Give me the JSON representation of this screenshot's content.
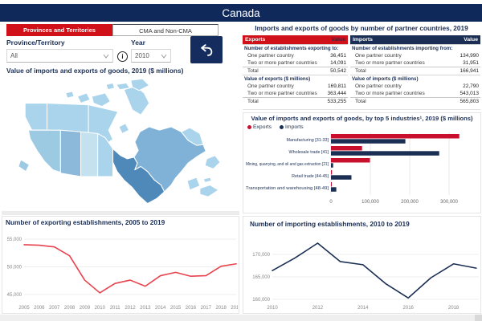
{
  "header": {
    "title": "Canada"
  },
  "tabs": {
    "provinces": "Provinces and Territories",
    "cma": "CMA and Non-CMA"
  },
  "filters": {
    "province_label": "Province/Territory",
    "province_value": "All",
    "year_label": "Year",
    "year_value": "2010"
  },
  "icons": {
    "info_glyph": "i"
  },
  "map": {
    "title": "Value of imports and exports of goods, 2019 ($ millions)",
    "region_colors": {
      "default": "#a9d4eb",
      "bc": "#9ccae3",
      "ab": "#8cb9d9",
      "sk": "#c4e1f0",
      "on": "#4e89ba",
      "qc": "#7fb2d6"
    }
  },
  "partner_tables": {
    "title": "Imports and exports of goods by number of partner countries, 2019",
    "exports": {
      "header": [
        "Exports",
        "Value"
      ],
      "header_bg": "#d01119",
      "value_header_color": "#1b2f55",
      "sections": [
        {
          "label": "Number of establishments exporting to:",
          "rows": [
            [
              "One partner country",
              "36,451"
            ],
            [
              "Two or more partner countries",
              "14,091"
            ],
            [
              "Total",
              "50,542"
            ]
          ]
        },
        {
          "label": "Value of exports ($ millions)",
          "rows": [
            [
              "One partner country",
              "169,811"
            ],
            [
              "Two or more partner countries",
              "363,444"
            ],
            [
              "Total",
              "533,255"
            ]
          ]
        }
      ]
    },
    "imports": {
      "header": [
        "Imports",
        "Value"
      ],
      "header_bg": "#1b2f55",
      "value_header_color": "#ffffff",
      "sections": [
        {
          "label": "Number of establishments importing from:",
          "rows": [
            [
              "One partner country",
              "134,990"
            ],
            [
              "Two or more partner countries",
              "31,951"
            ],
            [
              "Total",
              "166,941"
            ]
          ]
        },
        {
          "label": "Value of imports ($ millions)",
          "rows": [
            [
              "One partner country",
              "22,790"
            ],
            [
              "Two or more partner countries",
              "543,013"
            ],
            [
              "Total",
              "565,803"
            ]
          ]
        }
      ]
    }
  },
  "chart_data": [
    {
      "type": "bar",
      "orientation": "horizontal",
      "title": "Value of imports and exports of goods, by top 5 industries¹, 2019 ($ millions)",
      "categories": [
        "Manufacturing [31-33]",
        "Wholesale trade [41]",
        "Mining, quarrying, and oil and gas extraction [21]",
        "Retail trade [44-45]",
        "Transportation and warehousing [48-49]"
      ],
      "series": [
        {
          "name": "Exports",
          "color": "#c8102e",
          "values": [
            326000,
            79000,
            99000,
            2500,
            2000
          ]
        },
        {
          "name": "Imports",
          "color": "#1b2f55",
          "values": [
            189000,
            275000,
            5500,
            52000,
            13500
          ]
        }
      ],
      "xticks": [
        {
          "value": 0,
          "label": "0"
        },
        {
          "value": 100000,
          "label": "100,000"
        },
        {
          "value": 200000,
          "label": "200,000"
        },
        {
          "value": 300000,
          "label": "300,000"
        }
      ],
      "xlim": [
        0,
        380000
      ],
      "legend_position": "top-left",
      "grid": true
    },
    {
      "type": "line",
      "title": "Number of exporting establishments, 2005 to 2019",
      "color": "#e8424d",
      "x": [
        2005,
        2006,
        2007,
        2008,
        2009,
        2010,
        2011,
        2012,
        2013,
        2014,
        2015,
        2016,
        2017,
        2018,
        2019
      ],
      "values": [
        54000,
        53900,
        53600,
        52000,
        47600,
        45300,
        47000,
        47600,
        46500,
        48400,
        49000,
        48300,
        48400,
        50100,
        50542
      ],
      "yticks": [
        {
          "value": 55000,
          "label": "55,000"
        },
        {
          "value": 50000,
          "label": "50,000"
        },
        {
          "value": 45000,
          "label": "45,000"
        }
      ],
      "ylim": [
        44000,
        56200
      ],
      "xtick_labels": [
        "2005",
        "2006",
        "2007",
        "2008",
        "2009",
        "2010",
        "2011",
        "2012",
        "2013",
        "2014",
        "2015",
        "2016",
        "2017",
        "2018",
        "2019"
      ],
      "grid": true,
      "legend_position": "none"
    },
    {
      "type": "line",
      "title": "Number of importing establishments, 2010 to 2019",
      "color": "#1b2f55",
      "x": [
        2010,
        2011,
        2012,
        2013,
        2014,
        2015,
        2016,
        2017,
        2018,
        2019
      ],
      "values": [
        166400,
        169200,
        172500,
        168400,
        167700,
        163500,
        160300,
        164800,
        167900,
        166941
      ],
      "yticks": [
        {
          "value": 170000,
          "label": "170,000"
        },
        {
          "value": 165000,
          "label": "165,000"
        },
        {
          "value": 160000,
          "label": "160,000"
        }
      ],
      "ylim": [
        158500,
        174000
      ],
      "xtick_labels": [
        "2010",
        "2012",
        "2014",
        "2016",
        "2018"
      ],
      "grid": true,
      "legend_position": "none"
    }
  ]
}
